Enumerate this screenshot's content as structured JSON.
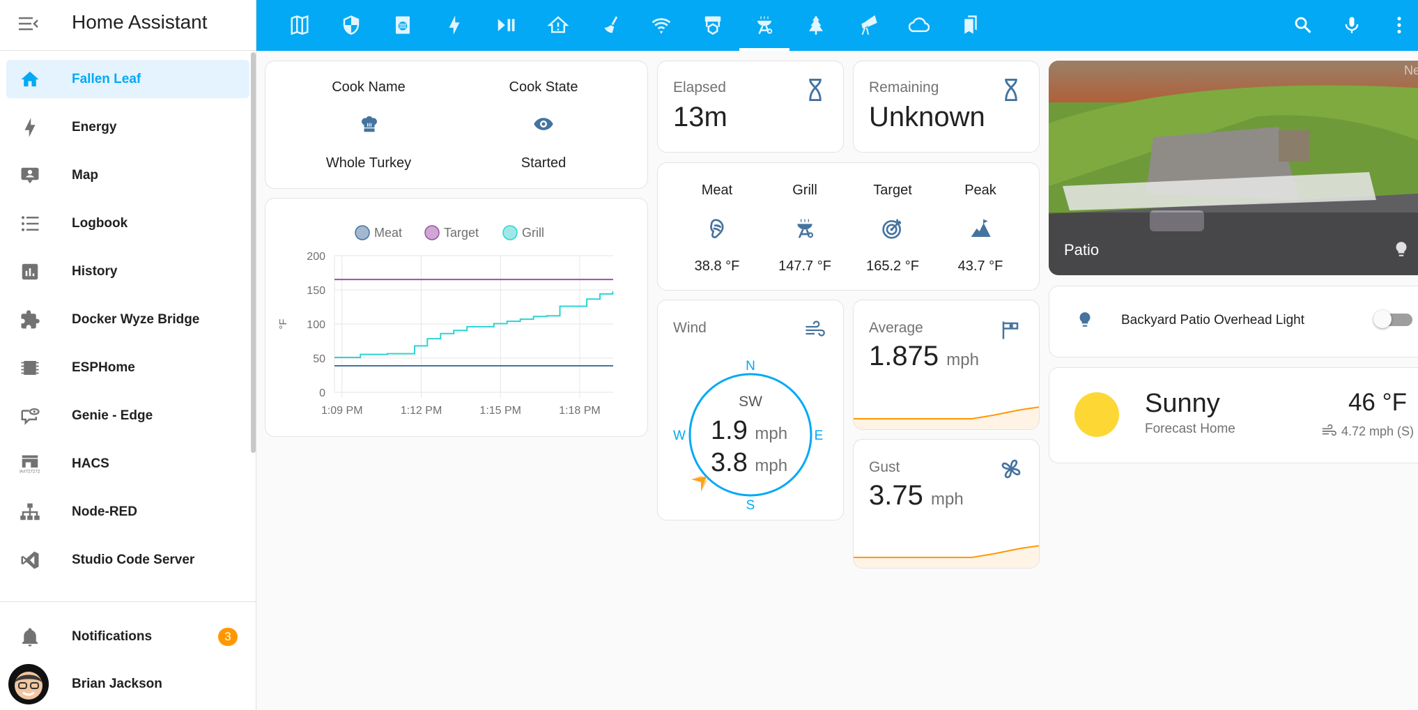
{
  "sidebar": {
    "title": "Home Assistant",
    "items": [
      {
        "label": "Fallen Leaf",
        "icon": "home-icon",
        "selected": true
      },
      {
        "label": "Energy",
        "icon": "lightning-icon"
      },
      {
        "label": "Map",
        "icon": "map-account-icon"
      },
      {
        "label": "Logbook",
        "icon": "list-icon"
      },
      {
        "label": "History",
        "icon": "chart-box-icon"
      },
      {
        "label": "Docker Wyze Bridge",
        "icon": "puzzle-icon"
      },
      {
        "label": "ESPHome",
        "icon": "chip-icon"
      },
      {
        "label": "Genie - Edge",
        "icon": "chat-eye-icon"
      },
      {
        "label": "HACS",
        "icon": "hacs-store-icon"
      },
      {
        "label": "Node-RED",
        "icon": "sitemap-icon"
      },
      {
        "label": "Studio Code Server",
        "icon": "vscode-icon"
      }
    ],
    "notifications": {
      "label": "Notifications",
      "count": "3"
    },
    "user": {
      "name": "Brian Jackson"
    }
  },
  "topbar": {
    "tabs": [
      "map-icon",
      "shield-icon",
      "dishwasher-icon",
      "lightning-icon",
      "play-pause-icon",
      "home-alert-icon",
      "broom-icon",
      "wifi-icon",
      "printer-3d-icon",
      "grill-icon",
      "pine-tree-icon",
      "telescope-icon",
      "cloud-icon",
      "bookmark-icon"
    ],
    "active_tab": 9,
    "actions": [
      "search-icon",
      "microphone-icon",
      "dots-vertical-icon"
    ]
  },
  "cook": {
    "name_label": "Cook Name",
    "name_value": "Whole Turkey",
    "state_label": "Cook State",
    "state_value": "Started"
  },
  "elapsed": {
    "label": "Elapsed",
    "value": "13m"
  },
  "remaining": {
    "label": "Remaining",
    "value": "Unknown"
  },
  "temps": [
    {
      "label": "Meat",
      "value": "38.8 °F",
      "icon": "food-steak-icon"
    },
    {
      "label": "Grill",
      "value": "147.7 °F",
      "icon": "grill-icon"
    },
    {
      "label": "Target",
      "value": "165.2 °F",
      "icon": "target-arrow-icon"
    },
    {
      "label": "Peak",
      "value": "43.7 °F",
      "icon": "summit-icon"
    }
  ],
  "wind": {
    "label": "Wind",
    "direction": "SW",
    "speed": "1.9",
    "gust": "3.8",
    "unit": "mph",
    "compass": {
      "n": "N",
      "e": "E",
      "s": "S",
      "w": "W"
    }
  },
  "average": {
    "label": "Average",
    "value": "1.875",
    "unit": "mph"
  },
  "gust": {
    "label": "Gust",
    "value": "3.75",
    "unit": "mph"
  },
  "camera": {
    "label": "Patio",
    "watermark": "Nes"
  },
  "light": {
    "label": "Backyard Patio Overhead Light",
    "on": false
  },
  "weather": {
    "condition": "Sunny",
    "location": "Forecast Home",
    "temperature": "46 °F",
    "wind": "4.72 mph (S)"
  },
  "colors": {
    "accent": "#03a9f4",
    "icon": "#44739e",
    "meat": "#44739e",
    "target": "#9c4fa8",
    "grill": "#2bd4d4",
    "sparkline": "#ff9800",
    "sun": "#fdd835"
  },
  "chart_data": {
    "type": "line",
    "ylabel": "°F",
    "ylim": [
      0,
      200
    ],
    "yticks": [
      "0",
      "50",
      "100",
      "150",
      "200"
    ],
    "xticks": [
      "1:09 PM",
      "1:12 PM",
      "1:15 PM",
      "1:18 PM"
    ],
    "legend_position": "top",
    "grid": true,
    "series": [
      {
        "name": "Meat",
        "step": true,
        "points": [
          [
            "13:08:43",
            38.8
          ],
          [
            "13:19:16",
            38.8
          ]
        ]
      },
      {
        "name": "Target",
        "step": true,
        "points": [
          [
            "13:08:43",
            165.2
          ],
          [
            "13:19:16",
            165.2
          ]
        ]
      },
      {
        "name": "Grill",
        "step": true,
        "points": [
          [
            "13:08:43",
            51
          ],
          [
            "13:09:42",
            55.5
          ],
          [
            "13:10:43",
            56.5
          ],
          [
            "13:11:45",
            68
          ],
          [
            "13:12:14",
            78.5
          ],
          [
            "13:12:44",
            86
          ],
          [
            "13:13:14",
            90.5
          ],
          [
            "13:13:44",
            96
          ],
          [
            "13:14:45",
            100.5
          ],
          [
            "13:15:15",
            104
          ],
          [
            "13:15:45",
            107
          ],
          [
            "13:16:15",
            111
          ],
          [
            "13:16:45",
            112
          ],
          [
            "13:17:15",
            126
          ],
          [
            "13:18:16",
            136.5
          ],
          [
            "13:18:46",
            144
          ],
          [
            "13:19:15",
            147.7
          ]
        ]
      }
    ]
  }
}
